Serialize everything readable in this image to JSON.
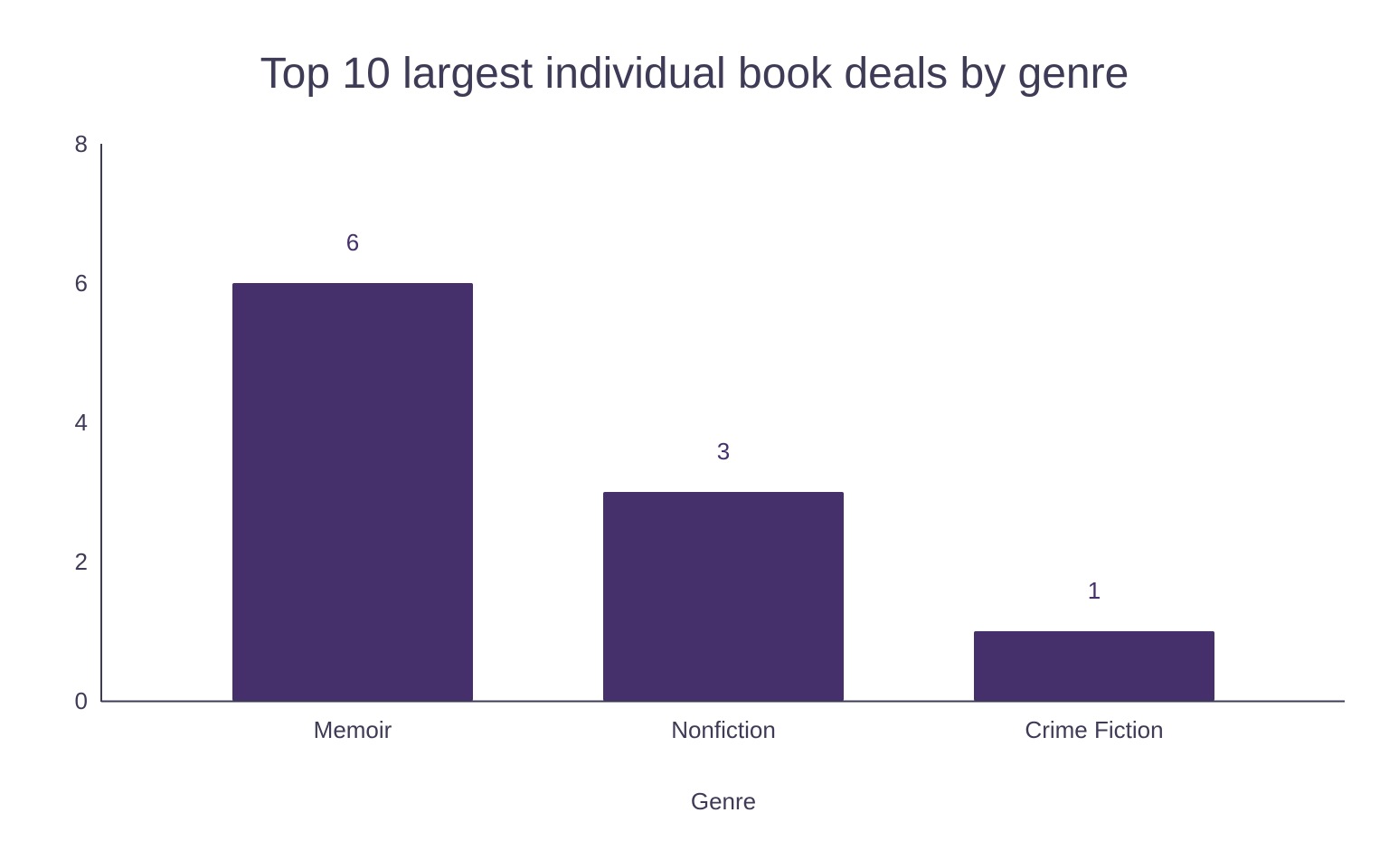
{
  "chart_data": {
    "type": "bar",
    "title": "Top 10 largest individual book deals by genre",
    "xlabel": "Genre",
    "ylabel": "",
    "categories": [
      "Memoir",
      "Nonfiction",
      "Crime Fiction"
    ],
    "values": [
      6,
      3,
      1
    ],
    "data_labels": [
      "6",
      "3",
      "1"
    ],
    "ylim": [
      0,
      8
    ],
    "yticks": [
      "0",
      "2",
      "4",
      "6",
      "8"
    ],
    "grid": false,
    "legend": "none",
    "bar_color": "#45306b",
    "axis_color": "#3d3b55"
  }
}
